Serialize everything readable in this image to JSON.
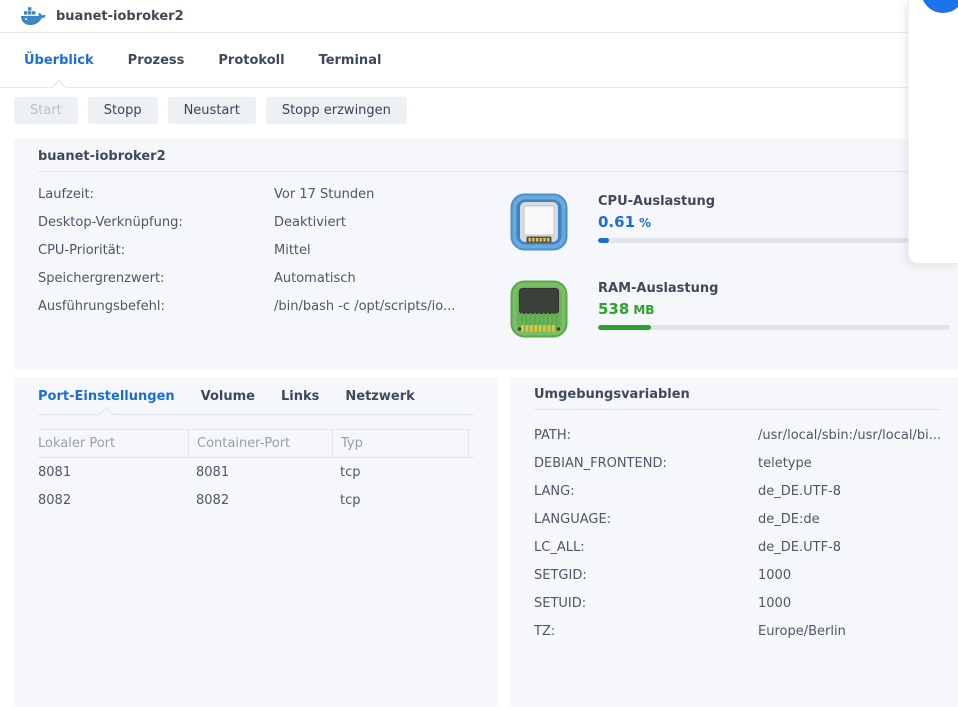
{
  "colors": {
    "accent_blue": "#1b6ed9",
    "accent_green": "#2da12e"
  },
  "header": {
    "title": "buanet-iobroker2"
  },
  "tabs": [
    {
      "label": "Überblick"
    },
    {
      "label": "Prozess"
    },
    {
      "label": "Protokoll"
    },
    {
      "label": "Terminal"
    }
  ],
  "toolbar": {
    "buttons": [
      {
        "label": "Start"
      },
      {
        "label": "Stopp"
      },
      {
        "label": "Neustart"
      },
      {
        "label": "Stopp erzwingen"
      }
    ]
  },
  "overview": {
    "title": "buanet-iobroker2",
    "details": [
      {
        "label": "Laufzeit:",
        "value": "Vor 17 Stunden"
      },
      {
        "label": "Desktop-Verknüpfung:",
        "value": "Deaktiviert"
      },
      {
        "label": "CPU-Priorität:",
        "value": "Mittel"
      },
      {
        "label": "Speichergrenzwert:",
        "value": "Automatisch"
      },
      {
        "label": "Ausführungsbefehl:",
        "value": "/bin/bash -c /opt/scripts/io..."
      }
    ],
    "cpu": {
      "title": "CPU-Auslastung",
      "value": "0.61",
      "unit": "%",
      "percent": 3
    },
    "ram": {
      "title": "RAM-Auslastung",
      "value": "538",
      "unit": "MB",
      "percent": 15
    }
  },
  "ports": {
    "tabs": [
      {
        "label": "Port-Einstellungen"
      },
      {
        "label": "Volume"
      },
      {
        "label": "Links"
      },
      {
        "label": "Netzwerk"
      }
    ],
    "columns": [
      "Lokaler Port",
      "Container-Port",
      "Typ"
    ],
    "rows": [
      [
        "8081",
        "8081",
        "tcp"
      ],
      [
        "8082",
        "8082",
        "tcp"
      ]
    ]
  },
  "env": {
    "title": "Umgebungsvariablen",
    "vars": [
      {
        "name": "PATH:",
        "value": "/usr/local/sbin:/usr/local/bi..."
      },
      {
        "name": "DEBIAN_FRONTEND:",
        "value": "teletype"
      },
      {
        "name": "LANG:",
        "value": "de_DE.UTF-8"
      },
      {
        "name": "LANGUAGE:",
        "value": "de_DE:de"
      },
      {
        "name": "LC_ALL:",
        "value": "de_DE.UTF-8"
      },
      {
        "name": "SETGID:",
        "value": "1000"
      },
      {
        "name": "SETUID:",
        "value": "1000"
      },
      {
        "name": "TZ:",
        "value": "Europe/Berlin"
      }
    ]
  }
}
